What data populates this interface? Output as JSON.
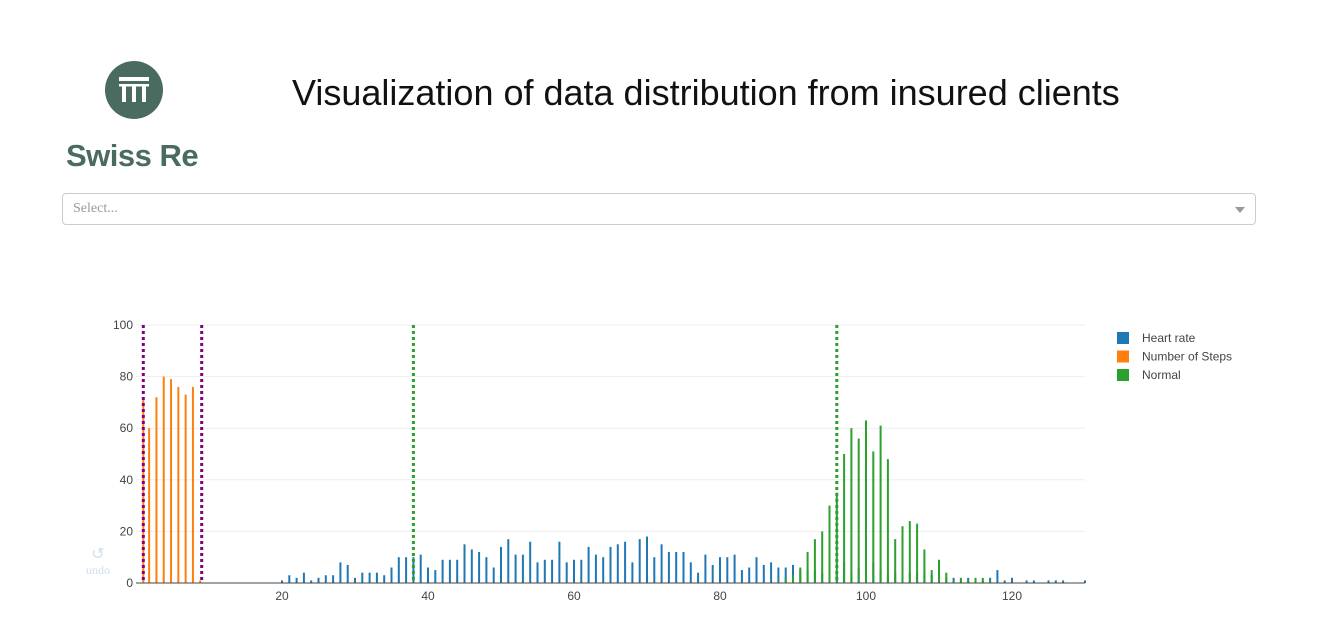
{
  "header": {
    "title": "Visualization of data distribution from insured clients",
    "logo_text": "Swiss Re"
  },
  "select": {
    "placeholder": "Select..."
  },
  "undo": {
    "label": "undo"
  },
  "colors": {
    "brand": "#4a6b5f",
    "heart_rate": "#1f77b4",
    "steps": "#ff7f0e",
    "normal": "#2ca02c",
    "threshold_purple": "#800080",
    "threshold_green": "#2ca02c"
  },
  "chart_data": {
    "type": "bar",
    "title": "",
    "xlabel": "",
    "ylabel": "",
    "xlim": [
      0,
      130
    ],
    "ylim": [
      0,
      100
    ],
    "xticks": [
      20,
      40,
      60,
      80,
      100,
      120
    ],
    "yticks": [
      0,
      20,
      40,
      60,
      80,
      100
    ],
    "grid": true,
    "legend_position": "top-right",
    "series": [
      {
        "name": "Heart rate",
        "color": "#1f77b4",
        "x": [
          20,
          21,
          22,
          23,
          24,
          25,
          26,
          27,
          28,
          29,
          30,
          31,
          32,
          33,
          34,
          35,
          36,
          37,
          38,
          39,
          40,
          41,
          42,
          43,
          44,
          45,
          46,
          47,
          48,
          49,
          50,
          51,
          52,
          53,
          54,
          55,
          56,
          57,
          58,
          59,
          60,
          61,
          62,
          63,
          64,
          65,
          66,
          67,
          68,
          69,
          70,
          71,
          72,
          73,
          74,
          75,
          76,
          77,
          78,
          79,
          80,
          81,
          82,
          83,
          84,
          85,
          86,
          87,
          88,
          89,
          90,
          91,
          92,
          93,
          94,
          95,
          96,
          97,
          98,
          99,
          100,
          101,
          102,
          103,
          104,
          105,
          106,
          107,
          108,
          109,
          110,
          111,
          112,
          113,
          114,
          115,
          116,
          117,
          118,
          119,
          120,
          122,
          123,
          125,
          126,
          127,
          130
        ],
        "values": [
          1,
          3,
          2,
          4,
          1,
          2,
          3,
          3,
          8,
          7,
          2,
          4,
          4,
          4,
          3,
          6,
          10,
          10,
          10,
          11,
          6,
          5,
          9,
          9,
          9,
          15,
          13,
          12,
          10,
          6,
          14,
          17,
          11,
          11,
          16,
          8,
          9,
          9,
          16,
          8,
          9,
          9,
          14,
          11,
          10,
          14,
          15,
          16,
          8,
          17,
          18,
          10,
          15,
          12,
          12,
          12,
          8,
          4,
          11,
          7,
          10,
          10,
          11,
          5,
          6,
          10,
          7,
          8,
          6,
          6,
          7,
          5,
          5,
          5,
          4,
          4,
          4,
          8,
          4,
          6,
          3,
          8,
          5,
          3,
          4,
          4,
          4,
          4,
          4,
          3,
          3,
          2,
          2,
          1,
          2,
          1,
          1,
          2,
          5,
          1,
          2,
          1,
          1,
          1,
          1,
          1,
          1
        ]
      },
      {
        "name": "Number of Steps",
        "color": "#ff7f0e",
        "x": [
          1,
          1.8,
          2.8,
          3.8,
          4.8,
          5.8,
          6.8,
          7.8,
          8.8
        ],
        "values": [
          72,
          60,
          72,
          80,
          79,
          76,
          73,
          76,
          1
        ]
      },
      {
        "name": "Normal",
        "color": "#2ca02c",
        "x": [
          88,
          89,
          90,
          91,
          92,
          93,
          94,
          95,
          96,
          97,
          98,
          99,
          100,
          101,
          102,
          103,
          104,
          105,
          106,
          107,
          108,
          109,
          110,
          111,
          112,
          113,
          114,
          115,
          116,
          117
        ],
        "values": [
          1,
          2,
          3,
          6,
          12,
          17,
          20,
          30,
          35,
          50,
          60,
          56,
          63,
          51,
          61,
          48,
          17,
          22,
          24,
          23,
          13,
          5,
          9,
          4,
          1,
          2,
          1,
          2,
          2,
          1
        ]
      }
    ],
    "threshold_lines": [
      {
        "x": 1,
        "color": "#800080"
      },
      {
        "x": 9,
        "color": "#800080"
      },
      {
        "x": 38,
        "color": "#2ca02c"
      },
      {
        "x": 96,
        "color": "#2ca02c"
      }
    ]
  }
}
